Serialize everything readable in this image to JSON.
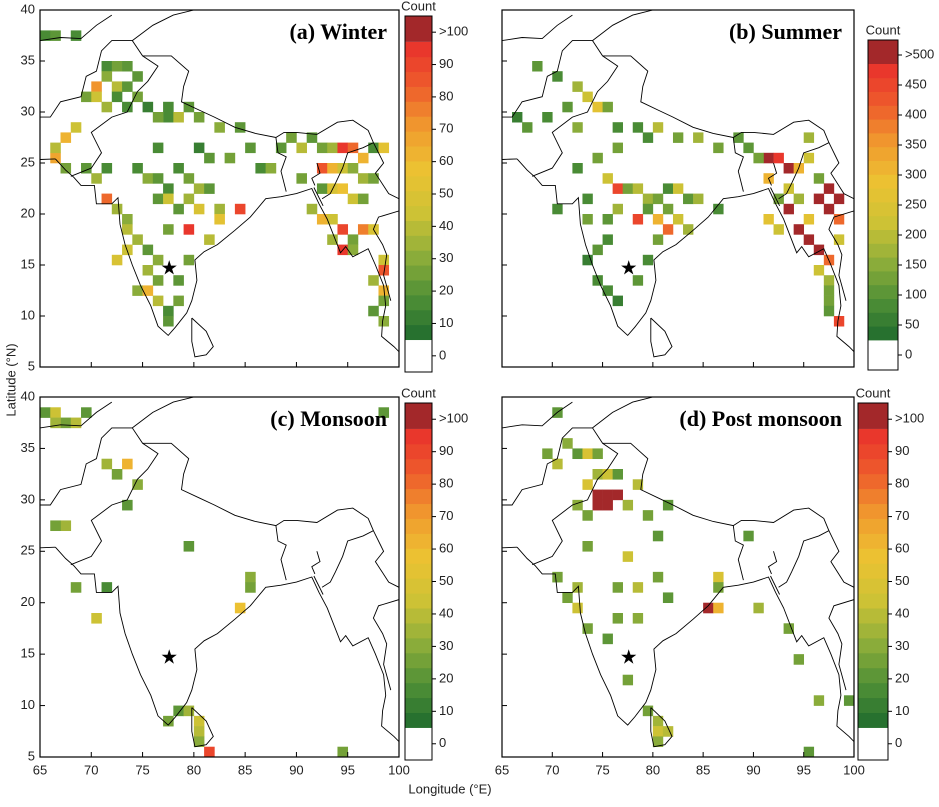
{
  "xlabel": "Longitude (°E)",
  "ylabel": "Latitude (°N)",
  "colormap": [
    "#1f6b2e",
    "#4f8f36",
    "#8fae3a",
    "#cfc235",
    "#ecc232",
    "#f09a2e",
    "#ee5a2c",
    "#e8302c"
  ],
  "over_color": "#a3282a",
  "zero_color": "#ffffff",
  "chart_data": [
    {
      "type": "heatmap",
      "title": "(a) Winter",
      "colorbar_label": "Count",
      "xlim": [
        65,
        100
      ],
      "ylim": [
        5,
        40
      ],
      "xticks": [
        65,
        70,
        75,
        80,
        85,
        90,
        95,
        100
      ],
      "yticks": [
        5,
        10,
        15,
        20,
        25,
        30,
        35,
        40
      ],
      "clim": [
        -5,
        105
      ],
      "cticks": [
        0,
        10,
        20,
        30,
        40,
        50,
        60,
        70,
        80,
        90,
        {
          "value": 100,
          "label": ">100"
        }
      ],
      "lon": [
        65,
        66,
        68,
        71,
        72,
        73,
        74,
        71,
        72,
        73,
        70,
        69,
        70,
        72,
        74,
        71,
        73,
        75,
        77,
        79,
        77,
        78,
        80,
        82,
        84,
        68,
        67,
        66,
        66,
        67,
        69,
        70,
        71,
        75,
        76,
        77,
        78,
        79,
        80,
        81,
        76,
        77,
        71,
        72,
        73,
        78,
        80,
        82,
        84,
        82,
        79,
        77,
        73,
        74,
        75,
        73,
        72,
        75,
        76,
        74,
        75,
        76,
        77,
        77,
        78,
        78,
        79,
        76,
        81,
        74,
        76,
        80,
        81,
        83,
        85,
        86,
        87,
        89,
        91,
        92,
        93,
        94,
        95,
        96,
        92,
        93,
        94,
        95,
        96,
        97,
        90,
        92,
        93,
        94,
        95,
        96,
        91,
        92,
        93,
        94,
        96,
        97,
        93,
        95,
        94,
        95,
        98,
        98,
        97,
        98,
        98,
        97,
        98,
        79,
        76,
        88,
        90,
        97,
        98
      ],
      "lat": [
        37,
        37,
        37,
        34,
        34,
        34,
        33,
        33,
        32,
        32,
        32,
        31,
        31,
        31,
        31,
        30,
        30,
        30,
        30,
        30,
        29,
        29,
        29,
        28,
        28,
        28,
        27,
        25,
        26,
        24,
        24,
        23,
        24,
        23,
        23,
        22,
        24,
        23,
        22,
        22,
        21,
        21,
        21,
        20,
        19,
        20,
        20,
        20,
        20,
        19,
        18,
        18,
        18,
        17,
        16,
        16,
        15,
        14,
        13,
        12,
        12,
        11,
        10,
        9,
        11,
        13,
        15,
        15,
        17,
        24,
        26,
        26,
        25,
        25,
        26,
        24,
        24,
        27,
        27,
        26,
        26,
        26,
        26,
        25,
        24,
        24,
        24,
        24,
        23,
        23,
        23,
        22,
        22,
        22,
        21,
        21,
        20,
        19,
        19,
        18,
        18,
        18,
        17,
        17,
        16,
        16,
        15,
        14,
        13,
        12,
        11,
        10,
        9,
        21,
        29,
        26,
        26,
        26,
        26
      ],
      "count": [
        12,
        15,
        10,
        12,
        20,
        15,
        18,
        25,
        35,
        15,
        70,
        20,
        40,
        12,
        22,
        30,
        10,
        8,
        12,
        15,
        14,
        35,
        22,
        25,
        15,
        40,
        60,
        65,
        35,
        20,
        15,
        30,
        12,
        25,
        18,
        10,
        12,
        20,
        30,
        15,
        18,
        40,
        80,
        30,
        25,
        15,
        45,
        30,
        90,
        50,
        95,
        20,
        35,
        30,
        15,
        40,
        45,
        30,
        20,
        25,
        60,
        35,
        12,
        15,
        22,
        15,
        20,
        25,
        35,
        10,
        12,
        8,
        15,
        20,
        15,
        10,
        25,
        20,
        15,
        22,
        30,
        95,
        80,
        60,
        85,
        60,
        40,
        25,
        30,
        20,
        20,
        15,
        45,
        55,
        40,
        20,
        30,
        60,
        40,
        90,
        75,
        45,
        30,
        20,
        95,
        25,
        40,
        85,
        30,
        60,
        20,
        15,
        25,
        30,
        20,
        15,
        35,
        12,
        50
      ]
    },
    {
      "type": "heatmap",
      "title": "(b) Summer",
      "colorbar_label": "Count",
      "xlim": [
        65,
        100
      ],
      "ylim": [
        5,
        40
      ],
      "xticks": [
        65,
        70,
        75,
        80,
        85,
        90,
        95,
        100
      ],
      "yticks": [
        5,
        10,
        15,
        20,
        25,
        30,
        35,
        40
      ],
      "clim": [
        -25,
        525
      ],
      "cticks": [
        0,
        50,
        100,
        150,
        200,
        250,
        300,
        350,
        400,
        450,
        {
          "value": 500,
          "label": ">500"
        }
      ],
      "lon": [
        68,
        70,
        72,
        73,
        74,
        75,
        71,
        69,
        66,
        67,
        72,
        76,
        78,
        80,
        82,
        84,
        86,
        79,
        88,
        76,
        74,
        72,
        75,
        76,
        77,
        78,
        79,
        80,
        81,
        82,
        83,
        84,
        79,
        81,
        82,
        78,
        80,
        76,
        75,
        73,
        73,
        70,
        75,
        74,
        73,
        74,
        75,
        76,
        78,
        79,
        80,
        81,
        83,
        86,
        91,
        92,
        93,
        94,
        95,
        96,
        97,
        98,
        96,
        97,
        98,
        93,
        94,
        93,
        94,
        95,
        96,
        97,
        96,
        97,
        97,
        97,
        97,
        98,
        95,
        92,
        91,
        98,
        95,
        89,
        90,
        91,
        92
      ],
      "lat": [
        34,
        33,
        32,
        31,
        30,
        30,
        30,
        29,
        29,
        28,
        28,
        28,
        28,
        28,
        27,
        27,
        26,
        27,
        27,
        26,
        25,
        24,
        23,
        22,
        22,
        22,
        21,
        21,
        22,
        22,
        21,
        21,
        20,
        20,
        19,
        19,
        19,
        20,
        19,
        19,
        21,
        20,
        17,
        16,
        15,
        13,
        12,
        11,
        13,
        15,
        17,
        18,
        18,
        20,
        25,
        25,
        24,
        24,
        25,
        23,
        22,
        21,
        21,
        20,
        19,
        22,
        21,
        20,
        18,
        17,
        16,
        15,
        14,
        13,
        12,
        11,
        10,
        9,
        19,
        21,
        23,
        17,
        27,
        26,
        25,
        19,
        18
      ],
      "count": [
        80,
        60,
        150,
        200,
        250,
        120,
        90,
        60,
        40,
        80,
        130,
        50,
        60,
        180,
        120,
        150,
        100,
        60,
        80,
        100,
        120,
        60,
        200,
        450,
        120,
        180,
        150,
        100,
        60,
        200,
        80,
        150,
        80,
        120,
        200,
        450,
        300,
        150,
        80,
        100,
        60,
        50,
        60,
        80,
        40,
        50,
        60,
        40,
        80,
        60,
        100,
        400,
        150,
        60,
        520,
        480,
        520,
        300,
        200,
        100,
        520,
        520,
        520,
        520,
        400,
        200,
        150,
        520,
        520,
        520,
        520,
        400,
        200,
        150,
        100,
        120,
        80,
        450,
        250,
        120,
        300,
        200,
        150,
        80,
        100,
        250,
        200
      ]
    },
    {
      "type": "heatmap",
      "title": "(c) Monsoon",
      "colorbar_label": "Count",
      "xlim": [
        65,
        100
      ],
      "ylim": [
        5,
        40
      ],
      "xticks": [
        65,
        70,
        75,
        80,
        85,
        90,
        95,
        100
      ],
      "yticks": [
        5,
        10,
        15,
        20,
        25,
        30,
        35,
        40
      ],
      "clim": [
        -5,
        105
      ],
      "cticks": [
        0,
        10,
        20,
        30,
        40,
        50,
        60,
        70,
        80,
        90,
        {
          "value": 100,
          "label": ">100"
        }
      ],
      "lon": [
        65,
        66,
        67,
        68,
        69,
        66,
        71,
        73,
        72,
        74,
        73,
        67,
        66,
        79,
        68,
        71,
        70,
        84,
        85,
        85,
        77,
        78,
        79,
        80,
        80,
        80,
        81,
        98,
        94
      ],
      "lat": [
        38,
        38,
        37,
        37,
        38,
        37,
        33,
        33,
        32,
        31,
        29,
        27,
        27,
        25,
        21,
        21,
        18,
        19,
        22,
        21,
        8,
        9,
        9,
        8,
        7,
        6,
        5,
        38,
        5
      ],
      "count": [
        15,
        40,
        20,
        35,
        15,
        30,
        30,
        60,
        20,
        25,
        15,
        30,
        20,
        15,
        20,
        10,
        40,
        55,
        25,
        20,
        20,
        15,
        30,
        40,
        35,
        25,
        90,
        15,
        20
      ]
    },
    {
      "type": "heatmap",
      "title": "(d) Post monsoon",
      "colorbar_label": "Count",
      "xlim": [
        65,
        100
      ],
      "ylim": [
        5,
        40
      ],
      "xticks": [
        65,
        70,
        75,
        80,
        85,
        90,
        95,
        100
      ],
      "yticks": [
        5,
        10,
        15,
        20,
        25,
        30,
        35,
        40
      ],
      "clim": [
        -5,
        105
      ],
      "cticks": [
        0,
        10,
        20,
        30,
        40,
        50,
        60,
        70,
        80,
        90,
        {
          "value": 100,
          "label": ">100"
        }
      ],
      "lon": [
        70,
        69,
        70,
        71,
        72,
        73,
        74,
        74,
        75,
        73,
        74,
        75,
        76,
        74,
        75,
        73,
        72,
        77,
        78,
        76,
        79,
        81,
        80,
        73,
        77,
        70,
        72,
        71,
        72,
        76,
        78,
        80,
        81,
        76,
        78,
        85,
        86,
        86,
        86,
        89,
        90,
        93,
        96,
        99,
        94,
        73,
        75,
        77,
        79,
        80,
        80,
        81,
        80,
        95
      ],
      "lat": [
        38,
        34,
        33,
        35,
        34,
        34,
        34,
        32,
        32,
        31,
        30,
        30,
        30,
        29,
        29,
        28,
        29,
        29,
        31,
        32,
        28,
        29,
        26,
        25,
        24,
        22,
        21,
        20,
        19,
        21,
        21,
        22,
        20,
        18,
        18,
        19,
        19,
        22,
        21,
        26,
        19,
        17,
        10,
        10,
        14,
        17,
        16,
        12,
        9,
        8,
        7,
        7,
        6,
        5
      ],
      "count": [
        15,
        20,
        35,
        25,
        15,
        45,
        20,
        30,
        40,
        45,
        110,
        110,
        110,
        110,
        110,
        20,
        25,
        30,
        35,
        15,
        20,
        15,
        15,
        20,
        40,
        20,
        30,
        20,
        40,
        20,
        35,
        20,
        15,
        20,
        25,
        110,
        60,
        45,
        20,
        15,
        30,
        20,
        25,
        15,
        20,
        20,
        15,
        20,
        20,
        30,
        40,
        35,
        25,
        15
      ]
    }
  ]
}
